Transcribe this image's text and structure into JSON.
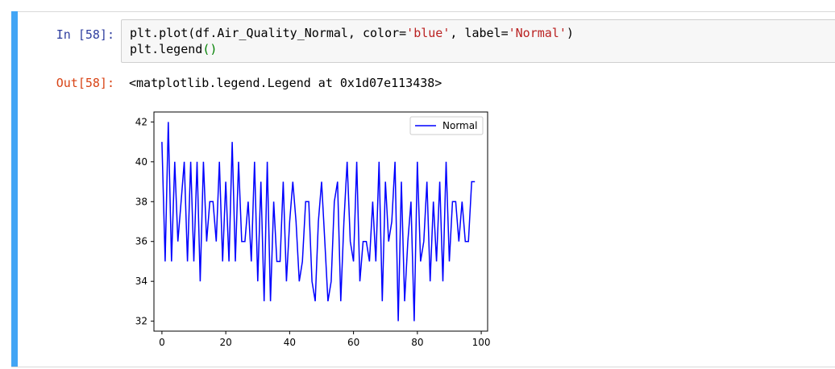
{
  "cell": {
    "in_prompt": "In [58]:",
    "out_prompt": "Out[58]:",
    "code_line1": {
      "a": "plt.plot(df.Air_Quality_Normal, color=",
      "b": "'blue'",
      "c": ", label=",
      "d": "'Normal'",
      "e": ")"
    },
    "code_line2": {
      "a": "plt.legend",
      "b": "()"
    },
    "output_text": "<matplotlib.legend.Legend at 0x1d07e113438>"
  },
  "colors": {
    "line": "#0000ff",
    "selected_bar": "#42a5f5",
    "in_prompt": "#303f9f",
    "out_prompt": "#d84315"
  },
  "chart_data": {
    "type": "line",
    "xlim": [
      -2.5,
      102
    ],
    "ylim": [
      31.5,
      42.5
    ],
    "xticks": [
      "0",
      "20",
      "40",
      "60",
      "80",
      "100"
    ],
    "yticks": [
      "32",
      "34",
      "36",
      "38",
      "40",
      "42"
    ],
    "legend_position": "top-right",
    "series": [
      {
        "name": "Normal",
        "color": "#0000ff",
        "x": [
          0,
          1,
          2,
          3,
          4,
          5,
          6,
          7,
          8,
          9,
          10,
          11,
          12,
          13,
          14,
          15,
          16,
          17,
          18,
          19,
          20,
          21,
          22,
          23,
          24,
          25,
          26,
          27,
          28,
          29,
          30,
          31,
          32,
          33,
          34,
          35,
          36,
          37,
          38,
          39,
          40,
          41,
          42,
          43,
          44,
          45,
          46,
          47,
          48,
          49,
          50,
          51,
          52,
          53,
          54,
          55,
          56,
          57,
          58,
          59,
          60,
          61,
          62,
          63,
          64,
          65,
          66,
          67,
          68,
          69,
          70,
          71,
          72,
          73,
          74,
          75,
          76,
          77,
          78,
          79,
          80,
          81,
          82,
          83,
          84,
          85,
          86,
          87,
          88,
          89,
          90,
          91,
          92,
          93,
          94,
          95,
          96,
          97,
          98
        ],
        "values": [
          41,
          35,
          42,
          35,
          40,
          36,
          38,
          40,
          35,
          40,
          35,
          40,
          34,
          40,
          36,
          38,
          38,
          36,
          40,
          35,
          39,
          35,
          41,
          35,
          40,
          36,
          36,
          38,
          35,
          40,
          34,
          39,
          33,
          40,
          33,
          38,
          35,
          35,
          39,
          34,
          37,
          39,
          37,
          34,
          35,
          38,
          38,
          34,
          33,
          37,
          39,
          36,
          33,
          34,
          38,
          39,
          33,
          37,
          40,
          36,
          35,
          40,
          34,
          36,
          36,
          35,
          38,
          35,
          40,
          33,
          39,
          36,
          37,
          40,
          32,
          39,
          33,
          36,
          38,
          32,
          40,
          35,
          36,
          39,
          34,
          38,
          35,
          39,
          34,
          40,
          35,
          38,
          38,
          36,
          38,
          36,
          36,
          39,
          39
        ]
      }
    ]
  }
}
